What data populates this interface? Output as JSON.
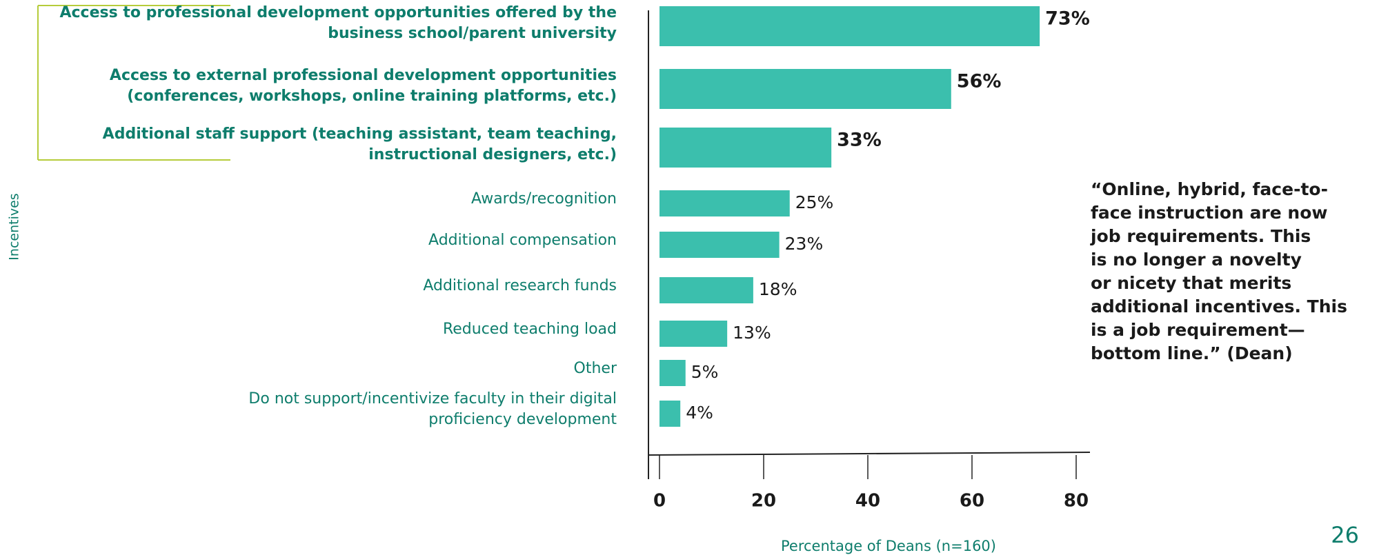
{
  "chart_data": {
    "type": "barh",
    "y_label": "Incentives",
    "x_label": "Percentage of Deans (n=160)",
    "categories": [
      "Access to professional development opportunities offered by the\nbusiness school/parent university",
      "Access to external professional development opportunities\n(conferences, workshops, online training platforms, etc.)",
      "Additional staff support (teaching assistant, team teaching,\ninstructional designers, etc.)",
      "Awards/recognition",
      "Additional compensation",
      "Additional research funds",
      "Reduced teaching load",
      "Other",
      "Do not support/incentivize faculty in their digital\nproficiency development"
    ],
    "values": [
      73,
      56,
      33,
      25,
      23,
      18,
      13,
      5,
      4
    ],
    "value_labels": [
      "73%",
      "56%",
      "33%",
      "25%",
      "23%",
      "18%",
      "13%",
      "5%",
      "4%"
    ],
    "color": "#3bbfad",
    "highlight_count": 3,
    "xlim": [
      0,
      80
    ],
    "xticks": [
      0,
      20,
      40,
      60,
      80
    ],
    "quote": "“Online, hybrid, face-to-\nface instruction are now\njob requirements. This\nis no longer a novelty\nor nicety that merits\nadditional incentives. This\nis a job requirement—\nbottom line.” (Dean)",
    "page_number": "26"
  }
}
